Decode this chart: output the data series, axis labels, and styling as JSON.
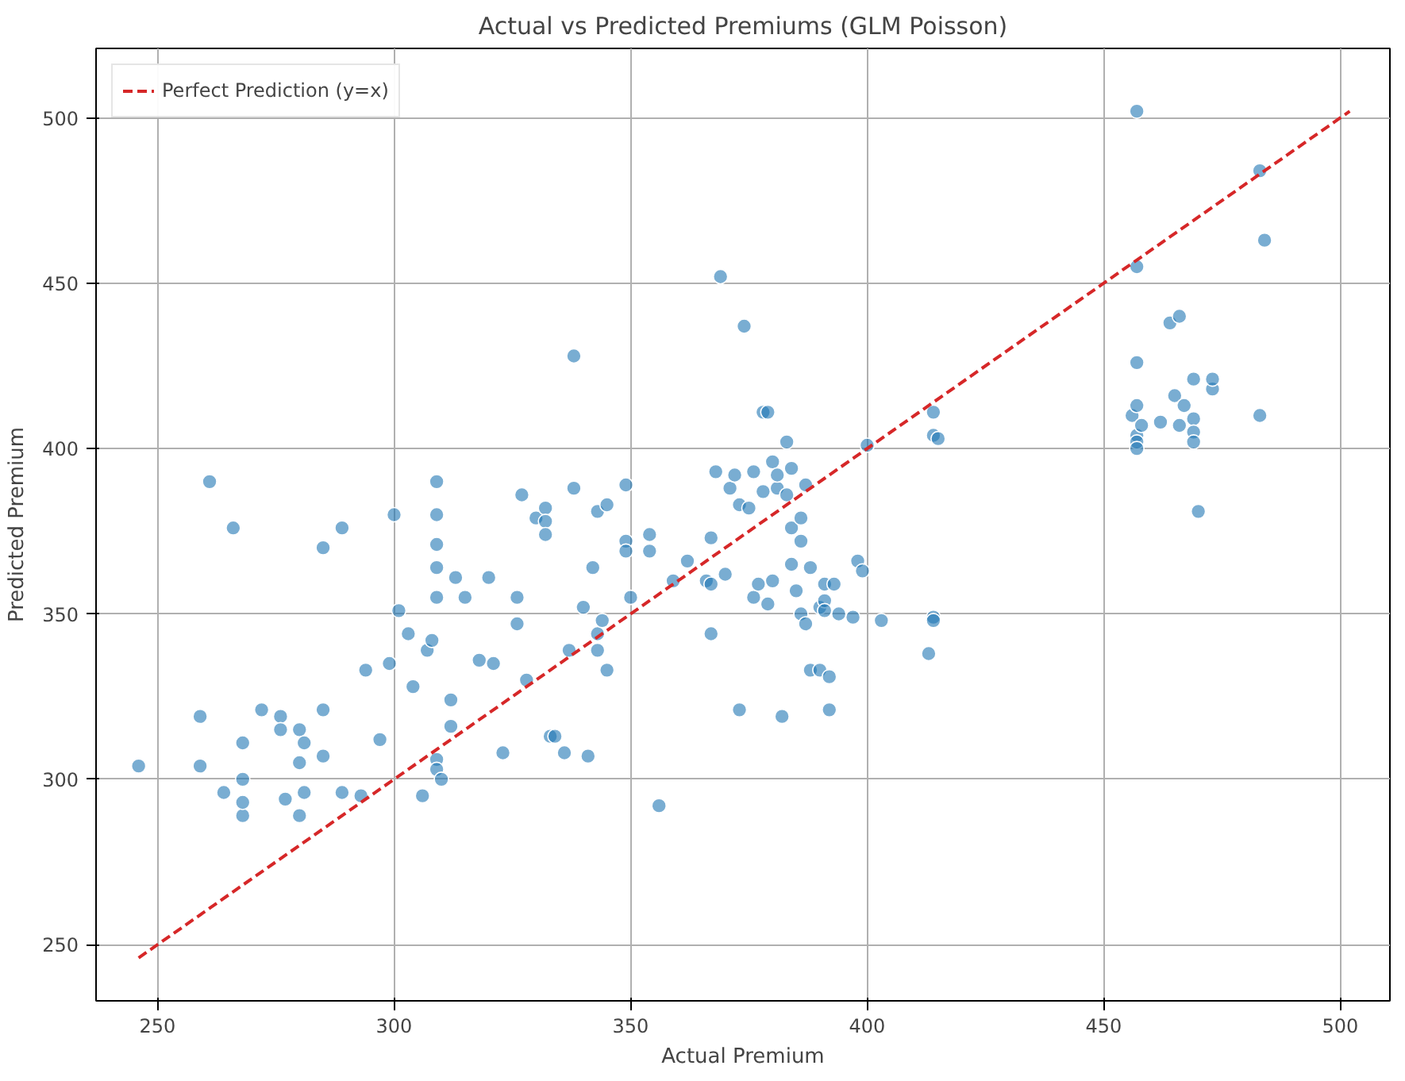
{
  "chart_data": {
    "type": "scatter",
    "title": "Actual vs Predicted Premiums (GLM Poisson)",
    "xlabel": "Actual Premium",
    "ylabel": "Predicted Premium",
    "xlim": [
      237,
      510.5
    ],
    "ylim": [
      233,
      521
    ],
    "xticks": [
      250,
      300,
      350,
      400,
      450,
      500
    ],
    "yticks": [
      250,
      300,
      350,
      400,
      450,
      500
    ],
    "grid": true,
    "legend": "top left",
    "marker": "circle",
    "series": [
      {
        "color": "#1f77b4",
        "x": [
          246,
          259,
          259,
          261,
          264,
          266,
          268,
          268,
          268,
          268,
          272,
          276,
          276,
          277,
          280,
          280,
          280,
          281,
          281,
          285,
          285,
          285,
          289,
          289,
          293,
          294,
          297,
          299,
          300,
          301,
          303,
          304,
          306,
          307,
          308,
          309,
          309,
          309,
          309,
          309,
          309,
          309,
          310,
          312,
          312,
          313,
          315,
          318,
          320,
          321,
          323,
          326,
          326,
          327,
          328,
          330,
          332,
          332,
          332,
          333,
          334,
          336,
          337,
          338,
          338,
          340,
          341,
          342,
          343,
          343,
          343,
          344,
          345,
          345,
          349,
          349,
          349,
          350,
          354,
          354,
          356,
          359,
          362,
          366,
          367,
          367,
          367,
          368,
          369,
          370,
          371,
          372,
          373,
          373,
          374,
          375,
          376,
          376,
          377,
          378,
          378,
          379,
          379,
          380,
          380,
          381,
          381,
          382,
          383,
          383,
          384,
          384,
          384,
          385,
          386,
          386,
          386,
          387,
          387,
          388,
          388,
          390,
          390,
          391,
          391,
          391,
          392,
          392,
          393,
          394,
          397,
          398,
          399,
          400,
          403,
          413,
          414,
          414,
          414,
          414,
          415,
          457,
          457,
          457,
          456,
          457,
          457,
          457,
          457,
          458,
          462,
          465,
          464,
          466,
          467,
          466,
          469,
          469,
          469,
          470,
          469,
          473,
          473,
          483,
          484,
          483
        ],
        "values": [
          304,
          319,
          304,
          390,
          296,
          376,
          289,
          293,
          300,
          311,
          321,
          319,
          315,
          294,
          315,
          305,
          289,
          311,
          296,
          307,
          321,
          370,
          376,
          296,
          295,
          333,
          312,
          335,
          380,
          351,
          344,
          328,
          295,
          339,
          342,
          390,
          380,
          371,
          364,
          355,
          306,
          303,
          300,
          316,
          324,
          361,
          355,
          336,
          361,
          335,
          308,
          347,
          355,
          386,
          330,
          379,
          382,
          378,
          374,
          313,
          313,
          308,
          339,
          388,
          428,
          352,
          307,
          364,
          339,
          344,
          381,
          348,
          333,
          383,
          389,
          372,
          369,
          355,
          374,
          369,
          292,
          360,
          366,
          360,
          359,
          344,
          373,
          393,
          452,
          362,
          388,
          392,
          321,
          383,
          437,
          382,
          393,
          355,
          359,
          411,
          387,
          353,
          411,
          396,
          360,
          388,
          392,
          319,
          386,
          402,
          394,
          365,
          376,
          357,
          350,
          379,
          372,
          389,
          347,
          333,
          364,
          352,
          333,
          359,
          354,
          351,
          331,
          321,
          359,
          350,
          349,
          366,
          363,
          401,
          348,
          338,
          349,
          348,
          411,
          404,
          403,
          502,
          455,
          426,
          410,
          413,
          404,
          402,
          400,
          407,
          408,
          416,
          438,
          440,
          413,
          407,
          409,
          405,
          402,
          381,
          421,
          418,
          421,
          484,
          463,
          410
        ]
      },
      {
        "type": "line",
        "name": "Perfect Prediction (y=x)",
        "color": "#d62728",
        "line_style": "dashed",
        "marker": "none",
        "x": [
          246,
          502
        ],
        "values": [
          246,
          502
        ]
      }
    ]
  }
}
